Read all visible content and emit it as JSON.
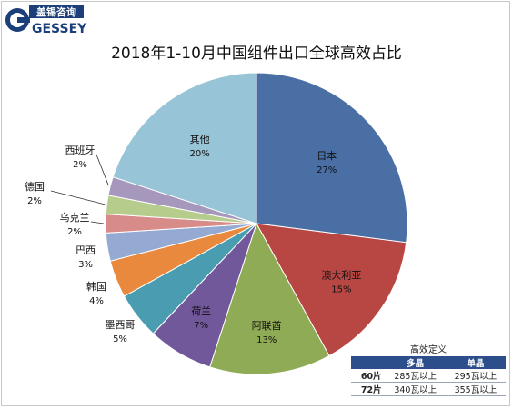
{
  "logo": {
    "cn_name": "盖锡咨询",
    "en_name": "GESSEY"
  },
  "chart_data": {
    "type": "pie",
    "title": "2018年1-10月中国组件出口全球高效占比",
    "start": "12 o'clock",
    "direction": "clockwise",
    "slices": [
      {
        "label": "日本",
        "value": 27,
        "value_label": "27%",
        "color": "#4a6fa5"
      },
      {
        "label": "澳大利亚",
        "value": 15,
        "value_label": "15%",
        "color": "#b84744"
      },
      {
        "label": "阿联酋",
        "value": 13,
        "value_label": "13%",
        "color": "#8fab55"
      },
      {
        "label": "荷兰",
        "value": 7,
        "value_label": "7%",
        "color": "#71589a"
      },
      {
        "label": "墨西哥",
        "value": 5,
        "value_label": "5%",
        "color": "#4a9db0"
      },
      {
        "label": "韩国",
        "value": 4,
        "value_label": "4%",
        "color": "#e8893d"
      },
      {
        "label": "巴西",
        "value": 3,
        "value_label": "3%",
        "color": "#94aad3"
      },
      {
        "label": "乌克兰",
        "value": 2,
        "value_label": "2%",
        "color": "#d88c8a"
      },
      {
        "label": "德国",
        "value": 2,
        "value_label": "2%",
        "color": "#b6cc8c"
      },
      {
        "label": "西班牙",
        "value": 2,
        "value_label": "2%",
        "color": "#a697bc"
      },
      {
        "label": "其他",
        "value": 20,
        "value_label": "20%",
        "color": "#97c4d6"
      }
    ]
  },
  "definition_table": {
    "title": "高效定义",
    "columns": [
      "",
      "多晶",
      "单晶"
    ],
    "rows": [
      {
        "label": "60片",
        "poly": "285瓦以上",
        "mono": "295瓦以上"
      },
      {
        "label": "72片",
        "poly": "340瓦以上",
        "mono": "355瓦以上"
      }
    ]
  }
}
